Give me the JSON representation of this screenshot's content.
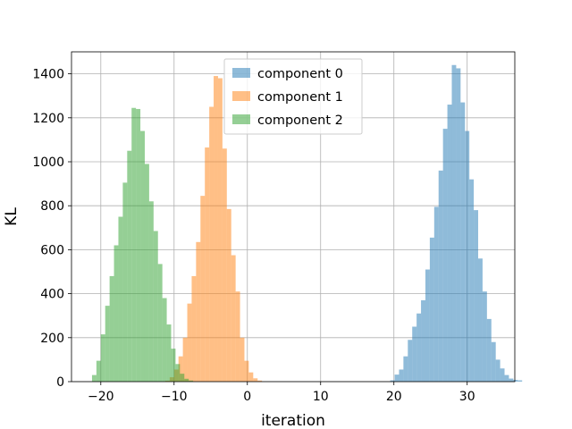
{
  "chart_data": {
    "type": "bar",
    "title": "",
    "xlabel": "iteration",
    "ylabel": "KL",
    "xlim": [
      -24,
      36.5
    ],
    "ylim": [
      0,
      1500
    ],
    "x_ticks": [
      -20,
      -10,
      0,
      10,
      20,
      30
    ],
    "y_ticks": [
      0,
      200,
      400,
      600,
      800,
      1000,
      1200,
      1400
    ],
    "grid": true,
    "legend": "top-center",
    "bin_width": 0.6,
    "series": [
      {
        "name": "component 0",
        "color": "#1f77b4",
        "opacity": 0.5,
        "start": 19.5,
        "counts": [
          6,
          32,
          55,
          115,
          190,
          250,
          310,
          370,
          510,
          655,
          795,
          960,
          1150,
          1260,
          1440,
          1425,
          1270,
          1140,
          920,
          780,
          560,
          410,
          285,
          180,
          100,
          60,
          30,
          14,
          8,
          6
        ]
      },
      {
        "name": "component 1",
        "color": "#ff7f0e",
        "opacity": 0.5,
        "start": -11.2,
        "counts": [
          4,
          20,
          55,
          115,
          200,
          355,
          480,
          635,
          845,
          1065,
          1250,
          1390,
          1380,
          1060,
          785,
          575,
          410,
          200,
          95,
          42,
          15,
          5
        ]
      },
      {
        "name": "component 2",
        "color": "#2ca02c",
        "opacity": 0.5,
        "start": -21.2,
        "counts": [
          30,
          95,
          215,
          345,
          480,
          620,
          750,
          905,
          1050,
          1245,
          1240,
          1140,
          990,
          820,
          685,
          535,
          380,
          260,
          150,
          80,
          36,
          13,
          5
        ]
      }
    ]
  }
}
